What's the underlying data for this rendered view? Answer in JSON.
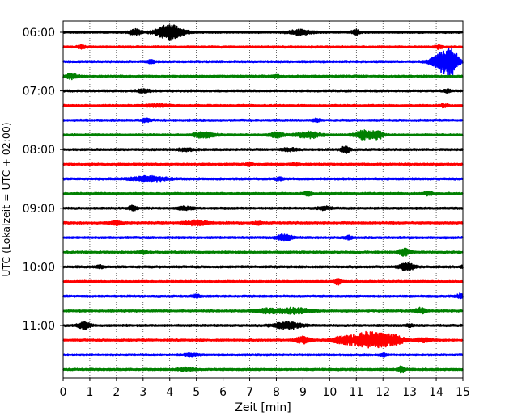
{
  "chart_data": {
    "type": "line",
    "title": "",
    "xlabel": "Zeit  [min]",
    "ylabel": "UTC (Lokalzeit = UTC + 02:00)",
    "xlim": [
      0,
      15
    ],
    "x_ticks": [
      0,
      1,
      2,
      3,
      4,
      5,
      6,
      7,
      8,
      9,
      10,
      11,
      12,
      13,
      14,
      15
    ],
    "x_tick_labels": [
      "0",
      "1",
      "2",
      "3",
      "4",
      "5",
      "6",
      "7",
      "8",
      "9",
      "10",
      "11",
      "12",
      "13",
      "14",
      "15"
    ],
    "y_tick_labels": [
      "06:00",
      "07:00",
      "08:00",
      "09:00",
      "10:00",
      "11:00"
    ],
    "grid": "x-dotted",
    "trace_colors": [
      "#000000",
      "#ff0000",
      "#0000ff",
      "#008000"
    ],
    "series": [
      {
        "start": "06:00",
        "events": [
          [
            2.7,
            0.6,
            0.15
          ],
          [
            4.0,
            1.6,
            0.35
          ],
          [
            8.9,
            0.5,
            0.3
          ],
          [
            11.0,
            0.5,
            0.1
          ]
        ]
      },
      {
        "start": "06:15",
        "events": [
          [
            0.7,
            0.3,
            0.1
          ],
          [
            14.1,
            0.4,
            0.1
          ]
        ]
      },
      {
        "start": "06:30",
        "events": [
          [
            3.3,
            0.3,
            0.1
          ],
          [
            14.3,
            2.4,
            0.3
          ],
          [
            14.6,
            1.8,
            0.15
          ]
        ]
      },
      {
        "start": "06:45",
        "events": [
          [
            0.3,
            0.6,
            0.15
          ],
          [
            8.0,
            0.3,
            0.1
          ]
        ]
      },
      {
        "start": "07:00",
        "events": [
          [
            3.0,
            0.3,
            0.2
          ],
          [
            14.4,
            0.3,
            0.1
          ]
        ]
      },
      {
        "start": "07:15",
        "events": [
          [
            3.5,
            0.25,
            0.3
          ],
          [
            14.3,
            0.3,
            0.1
          ]
        ]
      },
      {
        "start": "07:30",
        "events": [
          [
            3.1,
            0.4,
            0.1
          ],
          [
            9.5,
            0.3,
            0.1
          ]
        ]
      },
      {
        "start": "07:45",
        "events": [
          [
            5.3,
            0.6,
            0.3
          ],
          [
            8.0,
            0.5,
            0.2
          ],
          [
            9.2,
            0.7,
            0.3
          ],
          [
            11.3,
            1.0,
            0.25
          ],
          [
            11.8,
            0.8,
            0.15
          ]
        ]
      },
      {
        "start": "08:00",
        "events": [
          [
            4.6,
            0.3,
            0.2
          ],
          [
            8.5,
            0.3,
            0.2
          ],
          [
            10.6,
            0.9,
            0.1
          ]
        ]
      },
      {
        "start": "08:15",
        "events": [
          [
            7.0,
            0.3,
            0.1
          ],
          [
            8.7,
            0.3,
            0.1
          ]
        ]
      },
      {
        "start": "08:30",
        "events": [
          [
            3.2,
            0.5,
            0.5
          ],
          [
            8.1,
            0.3,
            0.1
          ]
        ]
      },
      {
        "start": "08:45",
        "events": [
          [
            9.2,
            0.6,
            0.1
          ],
          [
            13.7,
            0.5,
            0.1
          ]
        ]
      },
      {
        "start": "09:00",
        "events": [
          [
            2.6,
            0.5,
            0.1
          ],
          [
            4.6,
            0.3,
            0.2
          ],
          [
            9.8,
            0.3,
            0.2
          ]
        ]
      },
      {
        "start": "09:15",
        "events": [
          [
            2.0,
            0.4,
            0.15
          ],
          [
            5.0,
            0.5,
            0.3
          ],
          [
            7.3,
            0.3,
            0.1
          ]
        ]
      },
      {
        "start": "09:30",
        "events": [
          [
            8.3,
            0.7,
            0.2
          ],
          [
            10.7,
            0.4,
            0.1
          ]
        ]
      },
      {
        "start": "09:45",
        "events": [
          [
            3.0,
            0.3,
            0.1
          ],
          [
            12.8,
            0.7,
            0.15
          ]
        ]
      },
      {
        "start": "10:00",
        "events": [
          [
            1.4,
            0.3,
            0.1
          ],
          [
            12.9,
            0.8,
            0.2
          ],
          [
            15.0,
            0.4,
            0.05
          ]
        ]
      },
      {
        "start": "10:15",
        "events": [
          [
            10.3,
            0.6,
            0.1
          ]
        ]
      },
      {
        "start": "10:30",
        "events": [
          [
            5.0,
            0.3,
            0.1
          ],
          [
            14.9,
            0.5,
            0.1
          ]
        ]
      },
      {
        "start": "10:45",
        "events": [
          [
            7.6,
            0.4,
            0.3
          ],
          [
            8.6,
            0.6,
            0.45
          ],
          [
            13.4,
            0.6,
            0.15
          ]
        ]
      },
      {
        "start": "11:00",
        "events": [
          [
            0.8,
            0.8,
            0.15
          ],
          [
            8.4,
            0.7,
            0.35
          ],
          [
            13.0,
            0.3,
            0.1
          ]
        ]
      },
      {
        "start": "11:15",
        "events": [
          [
            9.0,
            0.7,
            0.2
          ],
          [
            10.5,
            0.7,
            0.3
          ],
          [
            11.5,
            1.8,
            0.45
          ],
          [
            12.4,
            0.9,
            0.3
          ],
          [
            13.5,
            0.4,
            0.2
          ]
        ]
      },
      {
        "start": "11:30",
        "events": [
          [
            4.8,
            0.3,
            0.2
          ],
          [
            12.0,
            0.3,
            0.1
          ]
        ]
      },
      {
        "start": "11:45",
        "events": [
          [
            4.6,
            0.3,
            0.2
          ],
          [
            12.7,
            0.7,
            0.1
          ]
        ]
      }
    ]
  }
}
